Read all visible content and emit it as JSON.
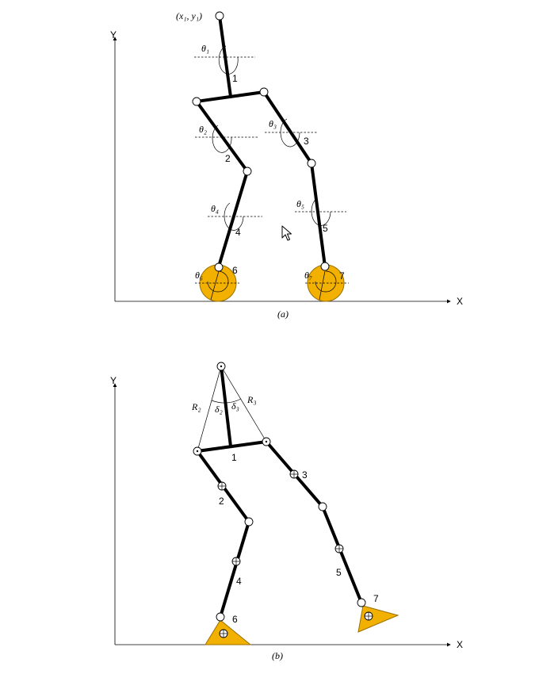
{
  "colors": {
    "foot_fill": "#F2B000",
    "foot_stroke": "#9a6f00",
    "line": "#000000"
  },
  "panel_a": {
    "caption": "(a)",
    "axis_x": "X",
    "axis_y": "Y",
    "point_label": "(x₁, y₁)",
    "theta_labels": [
      "θ₁",
      "θ₂",
      "θ₃",
      "θ₄",
      "θ₅",
      "θ₆",
      "θ₇"
    ],
    "link_labels": [
      "1",
      "2",
      "3",
      "4",
      "5",
      "6",
      "7"
    ]
  },
  "panel_b": {
    "caption": "(b)",
    "axis_x": "X",
    "axis_y": "Y",
    "r_labels": [
      "R₂",
      "R₃"
    ],
    "delta_labels": [
      "δ₂",
      "δ₃"
    ],
    "link_labels": [
      "1",
      "2",
      "3",
      "4",
      "5",
      "6",
      "7"
    ]
  },
  "cursor": {
    "icon": "mouse-pointer-icon"
  }
}
